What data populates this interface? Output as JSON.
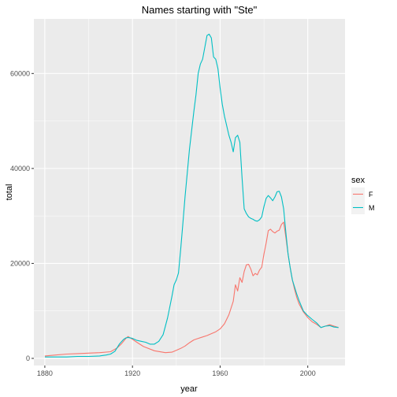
{
  "chart_data": {
    "type": "line",
    "title": "Names starting with \"Ste\"",
    "xlabel": "year",
    "ylabel": "total",
    "xlim": [
      1875,
      2017
    ],
    "ylim": [
      -1500,
      71500
    ],
    "x_ticks": [
      1880,
      1920,
      1960,
      2000
    ],
    "y_ticks": [
      0,
      20000,
      40000,
      60000
    ],
    "x_tick_labels": [
      "1880",
      "1920",
      "1960",
      "2000"
    ],
    "y_tick_labels": [
      "0",
      "20000",
      "40000",
      "60000"
    ],
    "grid": true,
    "legend": {
      "title": "sex",
      "position": "right"
    },
    "series": [
      {
        "name": "F",
        "color": "#F8766D",
        "x": [
          1880,
          1885,
          1890,
          1895,
          1900,
          1905,
          1910,
          1913,
          1915,
          1917,
          1918,
          1920,
          1922,
          1925,
          1930,
          1935,
          1938,
          1940,
          1942,
          1944,
          1946,
          1948,
          1950,
          1952,
          1954,
          1956,
          1958,
          1960,
          1962,
          1964,
          1966,
          1967,
          1968,
          1969,
          1970,
          1971,
          1972,
          1973,
          1974,
          1975,
          1976,
          1977,
          1978,
          1979,
          1980,
          1981,
          1982,
          1983,
          1984,
          1985,
          1986,
          1987,
          1988,
          1989,
          1990,
          1991,
          1992,
          1993,
          1994,
          1995,
          1996,
          1998,
          2000,
          2002,
          2004,
          2006,
          2008,
          2010,
          2012,
          2014
        ],
        "values": [
          500,
          700,
          900,
          1000,
          1100,
          1200,
          1400,
          2200,
          3100,
          4200,
          4600,
          4000,
          3400,
          2500,
          1600,
          1200,
          1300,
          1700,
          2100,
          2600,
          3300,
          3900,
          4200,
          4500,
          4800,
          5200,
          5600,
          6200,
          7300,
          9200,
          12000,
          15500,
          14200,
          17000,
          16000,
          18300,
          19700,
          19800,
          18800,
          17400,
          17900,
          17600,
          18600,
          19200,
          22000,
          24300,
          26900,
          27200,
          26700,
          26400,
          26800,
          27000,
          28200,
          28700,
          25500,
          22000,
          19000,
          16500,
          14500,
          12800,
          11500,
          9800,
          8600,
          7700,
          7200,
          6500,
          6800,
          7100,
          6800,
          6500
        ]
      },
      {
        "name": "M",
        "color": "#00BFC4",
        "x": [
          1880,
          1885,
          1890,
          1895,
          1900,
          1905,
          1908,
          1910,
          1912,
          1914,
          1916,
          1917,
          1918,
          1920,
          1922,
          1924,
          1926,
          1928,
          1930,
          1932,
          1934,
          1936,
          1938,
          1939,
          1940,
          1941,
          1942,
          1943,
          1944,
          1945,
          1946,
          1947,
          1948,
          1949,
          1950,
          1951,
          1952,
          1953,
          1954,
          1955,
          1956,
          1957,
          1958,
          1959,
          1960,
          1961,
          1962,
          1963,
          1964,
          1965,
          1966,
          1967,
          1968,
          1969,
          1970,
          1971,
          1972,
          1973,
          1974,
          1975,
          1976,
          1977,
          1978,
          1979,
          1980,
          1981,
          1982,
          1983,
          1984,
          1985,
          1986,
          1987,
          1988,
          1989,
          1990,
          1991,
          1992,
          1993,
          1994,
          1995,
          1996,
          1998,
          2000,
          2002,
          2004,
          2006,
          2008,
          2010,
          2012,
          2014
        ],
        "values": [
          300,
          300,
          300,
          400,
          400,
          500,
          700,
          900,
          1500,
          3000,
          4000,
          4300,
          4400,
          4200,
          3800,
          3600,
          3400,
          3000,
          3000,
          3600,
          5000,
          8500,
          13000,
          15500,
          16500,
          18000,
          23000,
          28500,
          34000,
          39000,
          44000,
          48000,
          52000,
          55500,
          60000,
          62000,
          63000,
          65500,
          68000,
          68300,
          67500,
          63500,
          63000,
          61000,
          57000,
          53500,
          51000,
          49000,
          47000,
          45500,
          43500,
          46500,
          47000,
          45500,
          38000,
          31500,
          30500,
          29800,
          29500,
          29300,
          29000,
          28900,
          29200,
          29800,
          32000,
          33700,
          34300,
          33800,
          33200,
          34000,
          35100,
          35200,
          34000,
          31500,
          26500,
          22000,
          19000,
          16500,
          15000,
          13500,
          12200,
          10000,
          9000,
          8200,
          7500,
          6500,
          6800,
          6900,
          6600,
          6500
        ]
      }
    ]
  }
}
